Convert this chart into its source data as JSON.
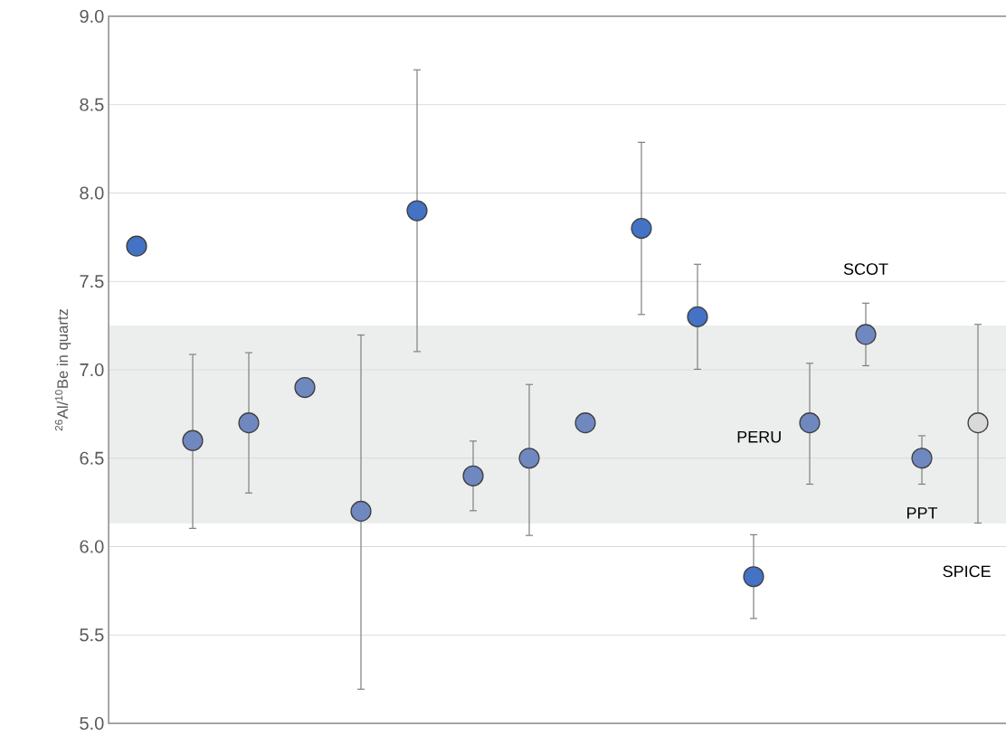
{
  "chart_data": {
    "type": "scatter",
    "ylabel": "$^{26}$Al/$^{10}$Be in quartz",
    "categories": [
      null,
      null,
      null,
      null,
      null,
      null,
      null,
      null,
      null,
      null,
      null,
      null,
      null,
      null,
      null,
      null
    ],
    "values": [
      7.7,
      6.6,
      6.7,
      6.9,
      6.2,
      7.9,
      6.4,
      6.5,
      6.7,
      7.8,
      7.3,
      5.83,
      6.7,
      7.2,
      6.5,
      6.7
    ],
    "errors": [
      null,
      [
        6.1,
        7.09
      ],
      [
        6.3,
        7.1
      ],
      null,
      [
        5.19,
        7.2
      ],
      [
        7.1,
        8.7
      ],
      [
        6.2,
        6.6
      ],
      [
        6.06,
        6.92
      ],
      null,
      [
        7.31,
        8.29
      ],
      [
        7.0,
        7.6
      ],
      [
        5.59,
        6.07
      ],
      [
        6.35,
        7.04
      ],
      [
        7.02,
        7.38
      ],
      [
        6.35,
        6.63
      ],
      [
        6.13,
        7.26
      ]
    ],
    "colors": [
      "#4472c4",
      "#7088c0",
      "#7088c0",
      "#7088c0",
      "#7088c0",
      "#4472c4",
      "#7088c0",
      "#7088c0",
      "#7088c0",
      "#4472c4",
      "#4472c4",
      "#4472c4",
      "#7088c0",
      "#7088c0",
      "#7088c0",
      "#d9d9d9"
    ],
    "marker": "circle",
    "ylim": [
      5.0,
      9.0
    ],
    "yticks": [
      {
        "value": 5.0,
        "label": "5.0"
      },
      5.5,
      {
        "value": 6.0,
        "label": "6.0"
      },
      6.5,
      {
        "value": 7.0,
        "label": "7.0"
      },
      7.5,
      {
        "value": 8.0,
        "label": "8.0"
      },
      8.5,
      {
        "value": 9.0,
        "label": "9.0"
      }
    ],
    "grid": "y",
    "bands": [
      {
        "axis": "y",
        "from": 6.13,
        "to": 7.25,
        "color": "#eceeed"
      }
    ],
    "annotations": [
      "SCOT",
      "PERU",
      "PPT",
      "SPICE"
    ]
  }
}
